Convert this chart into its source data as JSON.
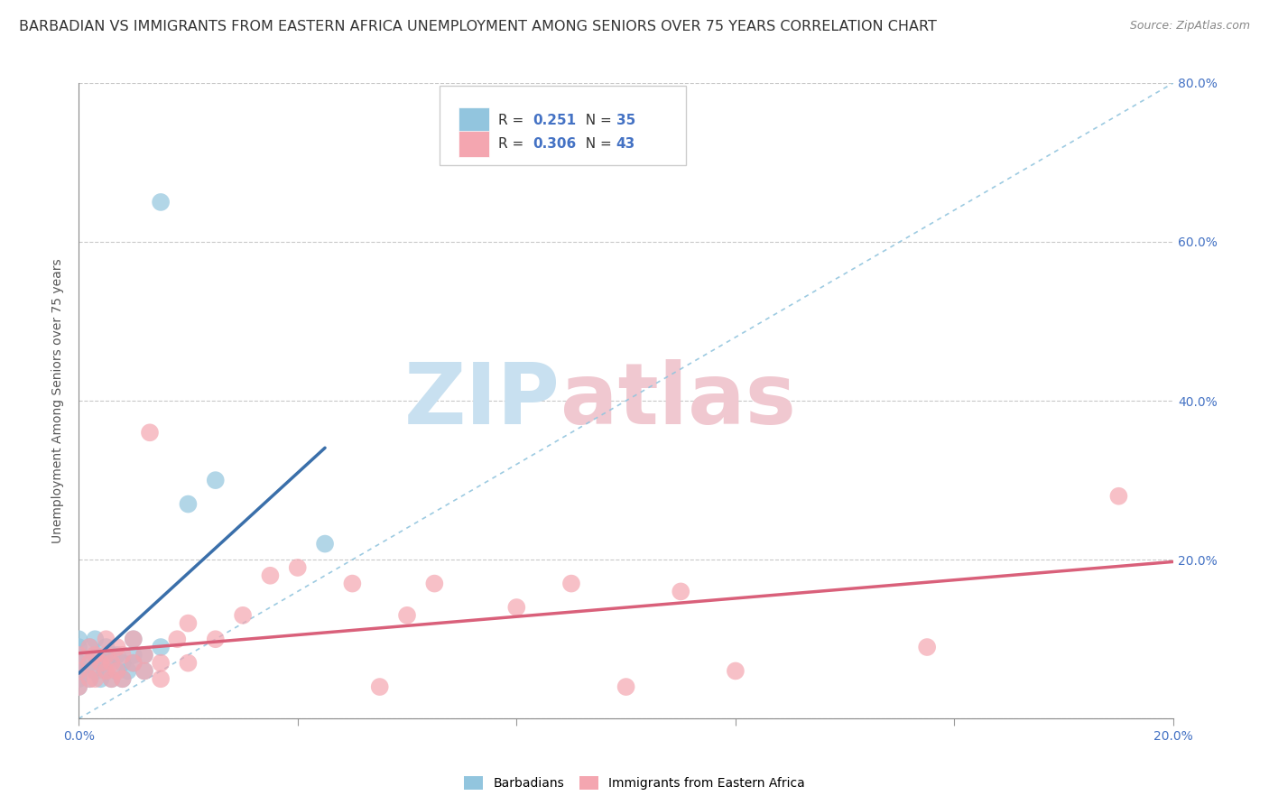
{
  "title": "BARBADIAN VS IMMIGRANTS FROM EASTERN AFRICA UNEMPLOYMENT AMONG SENIORS OVER 75 YEARS CORRELATION CHART",
  "source_text": "Source: ZipAtlas.com",
  "ylabel": "Unemployment Among Seniors over 75 years",
  "xlim": [
    0.0,
    0.2
  ],
  "ylim": [
    0.0,
    0.8
  ],
  "xticks": [
    0.0,
    0.04,
    0.08,
    0.12,
    0.16,
    0.2
  ],
  "yticks": [
    0.0,
    0.2,
    0.4,
    0.6,
    0.8
  ],
  "xtick_labels": [
    "0.0%",
    "",
    "",
    "",
    "",
    "20.0%"
  ],
  "ytick_labels_right": [
    "",
    "20.0%",
    "40.0%",
    "60.0%",
    "80.0%"
  ],
  "legend_blue_R": "0.251",
  "legend_blue_N": "35",
  "legend_pink_R": "0.306",
  "legend_pink_N": "43",
  "blue_color": "#92c5de",
  "pink_color": "#f4a6b0",
  "blue_line_color": "#3a6faa",
  "pink_line_color": "#d9607a",
  "diagonal_color": "#92c5de",
  "watermark_main": "#c8e0f0",
  "watermark_accent": "#f0c8d0",
  "background_color": "#ffffff",
  "blue_scatter_x": [
    0.0,
    0.0,
    0.0,
    0.0,
    0.0,
    0.0,
    0.0,
    0.002,
    0.002,
    0.002,
    0.003,
    0.003,
    0.003,
    0.004,
    0.004,
    0.005,
    0.005,
    0.005,
    0.006,
    0.006,
    0.007,
    0.007,
    0.008,
    0.008,
    0.009,
    0.01,
    0.01,
    0.01,
    0.012,
    0.012,
    0.015,
    0.015,
    0.02,
    0.025,
    0.045
  ],
  "blue_scatter_y": [
    0.04,
    0.05,
    0.06,
    0.07,
    0.08,
    0.09,
    0.1,
    0.05,
    0.07,
    0.09,
    0.06,
    0.08,
    0.1,
    0.05,
    0.07,
    0.06,
    0.07,
    0.09,
    0.05,
    0.08,
    0.06,
    0.08,
    0.05,
    0.07,
    0.06,
    0.07,
    0.08,
    0.1,
    0.06,
    0.08,
    0.09,
    0.65,
    0.27,
    0.3,
    0.22
  ],
  "pink_scatter_x": [
    0.0,
    0.0,
    0.0,
    0.002,
    0.002,
    0.002,
    0.003,
    0.003,
    0.004,
    0.005,
    0.005,
    0.005,
    0.006,
    0.006,
    0.007,
    0.007,
    0.008,
    0.008,
    0.01,
    0.01,
    0.012,
    0.012,
    0.013,
    0.015,
    0.015,
    0.018,
    0.02,
    0.02,
    0.025,
    0.03,
    0.035,
    0.04,
    0.05,
    0.055,
    0.06,
    0.065,
    0.08,
    0.09,
    0.1,
    0.11,
    0.12,
    0.155,
    0.19
  ],
  "pink_scatter_y": [
    0.04,
    0.06,
    0.08,
    0.05,
    0.07,
    0.09,
    0.05,
    0.08,
    0.07,
    0.06,
    0.08,
    0.1,
    0.05,
    0.07,
    0.06,
    0.09,
    0.05,
    0.08,
    0.07,
    0.1,
    0.06,
    0.08,
    0.36,
    0.05,
    0.07,
    0.1,
    0.07,
    0.12,
    0.1,
    0.13,
    0.18,
    0.19,
    0.17,
    0.04,
    0.13,
    0.17,
    0.14,
    0.17,
    0.04,
    0.16,
    0.06,
    0.09,
    0.28
  ],
  "title_fontsize": 11.5,
  "label_fontsize": 10,
  "tick_fontsize": 10,
  "legend_fontsize": 11
}
